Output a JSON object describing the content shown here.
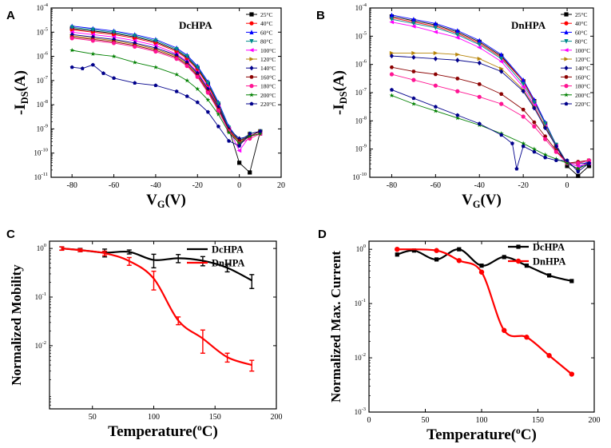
{
  "colors": {
    "axis": "#000000",
    "palette": [
      "#000000",
      "#ff0000",
      "#0000ff",
      "#008b8b",
      "#ff00ff",
      "#b8860b",
      "#00008b",
      "#8b0000",
      "#ff1493",
      "#008000",
      "#00008b"
    ]
  },
  "chart_data": [
    {
      "panel": "A",
      "type": "line",
      "title": "DcHPA",
      "xlabel": "V_G(V)",
      "ylabel": "-I_DS(A)",
      "yscale": "log",
      "xlim": [
        -90,
        20
      ],
      "ylim_exp": [
        -11,
        -4
      ],
      "xticks": [
        -80,
        -60,
        -40,
        -20,
        0,
        20
      ],
      "yticks_exp": [
        -11,
        -10,
        -9,
        -8,
        -7,
        -6,
        -5,
        -4
      ],
      "series": [
        {
          "name": "25°C",
          "color": "#000000",
          "marker": "square",
          "x": [
            -80,
            -70,
            -60,
            -50,
            -40,
            -30,
            -25,
            -20,
            -15,
            -10,
            -5,
            0,
            5,
            10
          ],
          "y": [
            -4.85,
            -4.95,
            -5.05,
            -5.2,
            -5.4,
            -5.75,
            -6.05,
            -6.5,
            -7.15,
            -8.0,
            -9.0,
            -10.4,
            -10.8,
            -9.1
          ]
        },
        {
          "name": "40°C",
          "color": "#ff0000",
          "marker": "circle",
          "x": [
            -80,
            -70,
            -60,
            -50,
            -40,
            -30,
            -25,
            -20,
            -15,
            -10,
            -5,
            0,
            5,
            10
          ],
          "y": [
            -4.9,
            -5.0,
            -5.1,
            -5.25,
            -5.45,
            -5.8,
            -6.1,
            -6.55,
            -7.2,
            -8.05,
            -9.05,
            -9.6,
            -9.3,
            -9.2
          ]
        },
        {
          "name": "60°C",
          "color": "#0000ff",
          "marker": "triangle-up",
          "x": [
            -80,
            -70,
            -60,
            -50,
            -40,
            -30,
            -25,
            -20,
            -15,
            -10,
            -5,
            0,
            5,
            10
          ],
          "y": [
            -4.75,
            -4.85,
            -4.95,
            -5.1,
            -5.3,
            -5.65,
            -5.95,
            -6.4,
            -7.05,
            -7.9,
            -8.9,
            -9.5,
            -9.2,
            -9.1
          ]
        },
        {
          "name": "80°C",
          "color": "#008b8b",
          "marker": "triangle-down",
          "x": [
            -80,
            -70,
            -60,
            -50,
            -40,
            -30,
            -25,
            -20,
            -15,
            -10,
            -5,
            0,
            5,
            10
          ],
          "y": [
            -4.8,
            -4.9,
            -5.0,
            -5.15,
            -5.35,
            -5.7,
            -6.0,
            -6.45,
            -7.1,
            -7.95,
            -8.95,
            -9.5,
            -9.2,
            -9.1
          ]
        },
        {
          "name": "100°C",
          "color": "#ff00ff",
          "marker": "triangle-left",
          "x": [
            -80,
            -70,
            -60,
            -50,
            -40,
            -30,
            -25,
            -20,
            -15,
            -10,
            -5,
            0,
            5,
            10
          ],
          "y": [
            -5.0,
            -5.1,
            -5.2,
            -5.35,
            -5.55,
            -5.9,
            -6.2,
            -6.65,
            -7.3,
            -8.1,
            -9.0,
            -9.9,
            -9.3,
            -9.2
          ]
        },
        {
          "name": "120°C",
          "color": "#b8860b",
          "marker": "triangle-right",
          "x": [
            -80,
            -70,
            -60,
            -50,
            -40,
            -30,
            -25,
            -20,
            -15,
            -10,
            -5,
            0,
            5,
            10
          ],
          "y": [
            -5.15,
            -5.25,
            -5.35,
            -5.5,
            -5.7,
            -6.0,
            -6.3,
            -6.75,
            -7.4,
            -8.15,
            -9.0,
            -9.6,
            -9.2,
            -9.1
          ]
        },
        {
          "name": "140°C",
          "color": "#00008b",
          "marker": "diamond",
          "x": [
            -80,
            -70,
            -60,
            -50,
            -40,
            -30,
            -25,
            -20,
            -15,
            -10,
            -5,
            0,
            5,
            10
          ],
          "y": [
            -5.1,
            -5.2,
            -5.3,
            -5.45,
            -5.65,
            -5.95,
            -6.25,
            -6.7,
            -7.35,
            -8.1,
            -9.0,
            -9.4,
            -9.3,
            -9.1
          ]
        },
        {
          "name": "160°C",
          "color": "#8b0000",
          "marker": "hexagon",
          "x": [
            -80,
            -70,
            -60,
            -50,
            -40,
            -30,
            -25,
            -20,
            -15,
            -10,
            -5,
            0,
            5,
            10
          ],
          "y": [
            -5.2,
            -5.3,
            -5.4,
            -5.55,
            -5.75,
            -6.05,
            -6.35,
            -6.8,
            -7.45,
            -8.2,
            -9.05,
            -9.5,
            -9.3,
            -9.1
          ]
        },
        {
          "name": "180°C",
          "color": "#ff1493",
          "marker": "circle",
          "x": [
            -80,
            -70,
            -60,
            -50,
            -40,
            -30,
            -25,
            -20,
            -15,
            -10,
            -5,
            0,
            5,
            10
          ],
          "y": [
            -5.25,
            -5.35,
            -5.45,
            -5.6,
            -5.8,
            -6.1,
            -6.4,
            -6.85,
            -7.5,
            -8.25,
            -9.1,
            -9.6,
            -9.4,
            -9.2
          ]
        },
        {
          "name": "200°C",
          "color": "#008000",
          "marker": "star",
          "x": [
            -80,
            -70,
            -60,
            -50,
            -40,
            -30,
            -25,
            -20,
            -15,
            -10,
            -5,
            0,
            5,
            10
          ],
          "y": [
            -5.75,
            -5.9,
            -6.0,
            -6.25,
            -6.45,
            -6.75,
            -7.0,
            -7.35,
            -7.8,
            -8.4,
            -9.15,
            -9.6,
            -9.3,
            -9.2
          ]
        },
        {
          "name": "220°C",
          "color": "#00008b",
          "marker": "pentagon",
          "x": [
            -80,
            -75,
            -70,
            -65,
            -60,
            -50,
            -40,
            -30,
            -25,
            -20,
            -15,
            -10,
            -5,
            0,
            5,
            10
          ],
          "y": [
            -6.45,
            -6.5,
            -6.35,
            -6.7,
            -6.9,
            -7.1,
            -7.2,
            -7.45,
            -7.65,
            -7.9,
            -8.3,
            -8.9,
            -9.5,
            -9.7,
            -9.2,
            -9.1
          ]
        }
      ]
    },
    {
      "panel": "B",
      "type": "line",
      "title": "DnHPA",
      "xlabel": "V_G(V)",
      "ylabel": "-I_DS(A)",
      "yscale": "log",
      "xlim": [
        -90,
        12
      ],
      "ylim_exp": [
        -10,
        -4
      ],
      "xticks": [
        -80,
        -60,
        -40,
        -20,
        0
      ],
      "yticks_exp": [
        -10,
        -9,
        -8,
        -7,
        -6,
        -5,
        -4
      ],
      "series": [
        {
          "name": "25°C",
          "color": "#000000",
          "marker": "square",
          "x": [
            -80,
            -70,
            -60,
            -50,
            -40,
            -30,
            -20,
            -15,
            -10,
            -5,
            0,
            5,
            10
          ],
          "y": [
            -4.3,
            -4.45,
            -4.6,
            -4.85,
            -5.2,
            -5.7,
            -6.6,
            -7.3,
            -8.1,
            -8.9,
            -9.6,
            -9.95,
            -9.6
          ]
        },
        {
          "name": "40°C",
          "color": "#ff0000",
          "marker": "circle",
          "x": [
            -80,
            -70,
            -60,
            -50,
            -40,
            -30,
            -20,
            -15,
            -10,
            -5,
            0,
            5,
            10
          ],
          "y": [
            -4.35,
            -4.5,
            -4.65,
            -4.9,
            -5.25,
            -5.75,
            -6.6,
            -7.3,
            -8.1,
            -8.85,
            -9.5,
            -9.7,
            -9.5
          ]
        },
        {
          "name": "60°C",
          "color": "#0000ff",
          "marker": "triangle-up",
          "x": [
            -80,
            -70,
            -60,
            -50,
            -40,
            -30,
            -20,
            -15,
            -10,
            -5,
            0,
            5,
            10
          ],
          "y": [
            -4.25,
            -4.4,
            -4.55,
            -4.8,
            -5.15,
            -5.65,
            -6.55,
            -7.25,
            -8.05,
            -8.85,
            -9.5,
            -9.7,
            -9.4
          ]
        },
        {
          "name": "80°C",
          "color": "#008b8b",
          "marker": "triangle-down",
          "x": [
            -80,
            -70,
            -60,
            -50,
            -40,
            -30,
            -20,
            -15,
            -10,
            -5,
            0,
            5,
            10
          ],
          "y": [
            -4.4,
            -4.55,
            -4.7,
            -4.95,
            -5.3,
            -5.8,
            -6.7,
            -7.35,
            -8.1,
            -8.85,
            -9.5,
            -9.6,
            -9.5
          ]
        },
        {
          "name": "100°C",
          "color": "#ff00ff",
          "marker": "triangle-left",
          "x": [
            -80,
            -70,
            -60,
            -50,
            -40,
            -30,
            -20,
            -15,
            -10,
            -5,
            0,
            5,
            10
          ],
          "y": [
            -4.5,
            -4.65,
            -4.85,
            -5.05,
            -5.4,
            -5.9,
            -6.8,
            -7.45,
            -8.2,
            -8.9,
            -9.5,
            -9.6,
            -9.5
          ]
        },
        {
          "name": "120°C",
          "color": "#b8860b",
          "marker": "triangle-right",
          "x": [
            -80,
            -70,
            -60,
            -50,
            -40,
            -30,
            -20,
            -15,
            -10,
            -5,
            0,
            5,
            10
          ],
          "y": [
            -5.6,
            -5.6,
            -5.6,
            -5.65,
            -5.8,
            -6.15,
            -6.9,
            -7.5,
            -8.2,
            -8.9,
            -9.5,
            -9.5,
            -9.4
          ]
        },
        {
          "name": "140°C",
          "color": "#00008b",
          "marker": "diamond",
          "x": [
            -80,
            -70,
            -60,
            -50,
            -40,
            -30,
            -20,
            -15,
            -10,
            -5,
            0,
            5,
            10
          ],
          "y": [
            -5.7,
            -5.75,
            -5.8,
            -5.85,
            -5.95,
            -6.25,
            -6.95,
            -7.55,
            -8.25,
            -8.9,
            -9.5,
            -9.5,
            -9.5
          ]
        },
        {
          "name": "160°C",
          "color": "#8b0000",
          "marker": "hexagon",
          "x": [
            -80,
            -70,
            -60,
            -50,
            -40,
            -30,
            -20,
            -15,
            -10,
            -5,
            0,
            5,
            10
          ],
          "y": [
            -6.1,
            -6.25,
            -6.35,
            -6.5,
            -6.7,
            -7.05,
            -7.6,
            -8.05,
            -8.55,
            -9.05,
            -9.5,
            -9.45,
            -9.4
          ]
        },
        {
          "name": "180°C",
          "color": "#ff1493",
          "marker": "circle",
          "x": [
            -80,
            -70,
            -60,
            -50,
            -40,
            -30,
            -20,
            -15,
            -10,
            -5,
            0,
            5,
            10
          ],
          "y": [
            -6.35,
            -6.55,
            -6.75,
            -6.95,
            -7.15,
            -7.4,
            -7.85,
            -8.2,
            -8.65,
            -9.1,
            -9.5,
            -9.5,
            -9.4
          ]
        },
        {
          "name": "200°C",
          "color": "#008000",
          "marker": "star",
          "x": [
            -80,
            -70,
            -60,
            -50,
            -40,
            -30,
            -20,
            -15,
            -10,
            -5,
            0,
            5,
            10
          ],
          "y": [
            -7.1,
            -7.4,
            -7.65,
            -7.9,
            -8.15,
            -8.45,
            -8.8,
            -9.0,
            -9.2,
            -9.35,
            -9.5,
            -9.7,
            -9.5
          ]
        },
        {
          "name": "220°C",
          "color": "#00008b",
          "marker": "pentagon",
          "x": [
            -80,
            -70,
            -60,
            -50,
            -40,
            -30,
            -25,
            -23,
            -20,
            -15,
            -10,
            -5,
            0,
            5,
            10
          ],
          "y": [
            -6.9,
            -7.2,
            -7.5,
            -7.8,
            -8.1,
            -8.5,
            -8.8,
            -9.7,
            -8.9,
            -9.1,
            -9.3,
            -9.4,
            -9.4,
            -9.8,
            -9.5
          ]
        }
      ]
    },
    {
      "panel": "C",
      "type": "line",
      "xlabel": "Temperature(°C)",
      "ylabel": "Normalized Mobility",
      "yscale": "log",
      "xlim": [
        15,
        200
      ],
      "ylim_exp": [
        -3.3,
        0.15
      ],
      "xticks": [
        50,
        100,
        150,
        200
      ],
      "yticks_exp": [
        -2,
        -1,
        0
      ],
      "series": [
        {
          "name": "DcHPA",
          "color": "#000000",
          "x": [
            25,
            40,
            60,
            80,
            100,
            120,
            140,
            160,
            180
          ],
          "y": [
            1.0,
            0.93,
            0.82,
            0.85,
            0.58,
            0.63,
            0.56,
            0.4,
            0.22
          ],
          "err": [
            0.08,
            0.07,
            0.15,
            0.08,
            0.18,
            0.12,
            0.12,
            0.07,
            0.07
          ]
        },
        {
          "name": "DnHPA",
          "color": "#ff0000",
          "x": [
            25,
            40,
            60,
            80,
            100,
            120,
            140,
            160,
            180
          ],
          "y": [
            1.0,
            0.92,
            0.8,
            0.55,
            0.24,
            0.033,
            0.014,
            0.0058,
            0.004
          ],
          "err": [
            0.08,
            0.06,
            0.08,
            0.1,
            0.1,
            0.006,
            0.007,
            0.0012,
            0.001
          ]
        }
      ]
    },
    {
      "panel": "D",
      "type": "line",
      "xlabel": "Temperature(°C)",
      "ylabel": "Normalized Max. Current",
      "yscale": "log",
      "xlim": [
        0,
        200
      ],
      "ylim_exp": [
        -3,
        0.15
      ],
      "xticks": [
        0,
        50,
        100,
        150,
        200
      ],
      "yticks_exp": [
        -3,
        -2,
        -1,
        0
      ],
      "series": [
        {
          "name": "DcHPA",
          "color": "#000000",
          "x": [
            25,
            40,
            60,
            80,
            100,
            120,
            140,
            160,
            180
          ],
          "y": [
            0.8,
            0.95,
            0.65,
            1.0,
            0.5,
            0.72,
            0.5,
            0.33,
            0.26
          ]
        },
        {
          "name": "DnHPA",
          "color": "#ff0000",
          "x": [
            25,
            60,
            80,
            100,
            120,
            140,
            160,
            180
          ],
          "y": [
            1.0,
            0.95,
            0.62,
            0.38,
            0.032,
            0.024,
            0.011,
            0.005
          ]
        }
      ]
    }
  ]
}
